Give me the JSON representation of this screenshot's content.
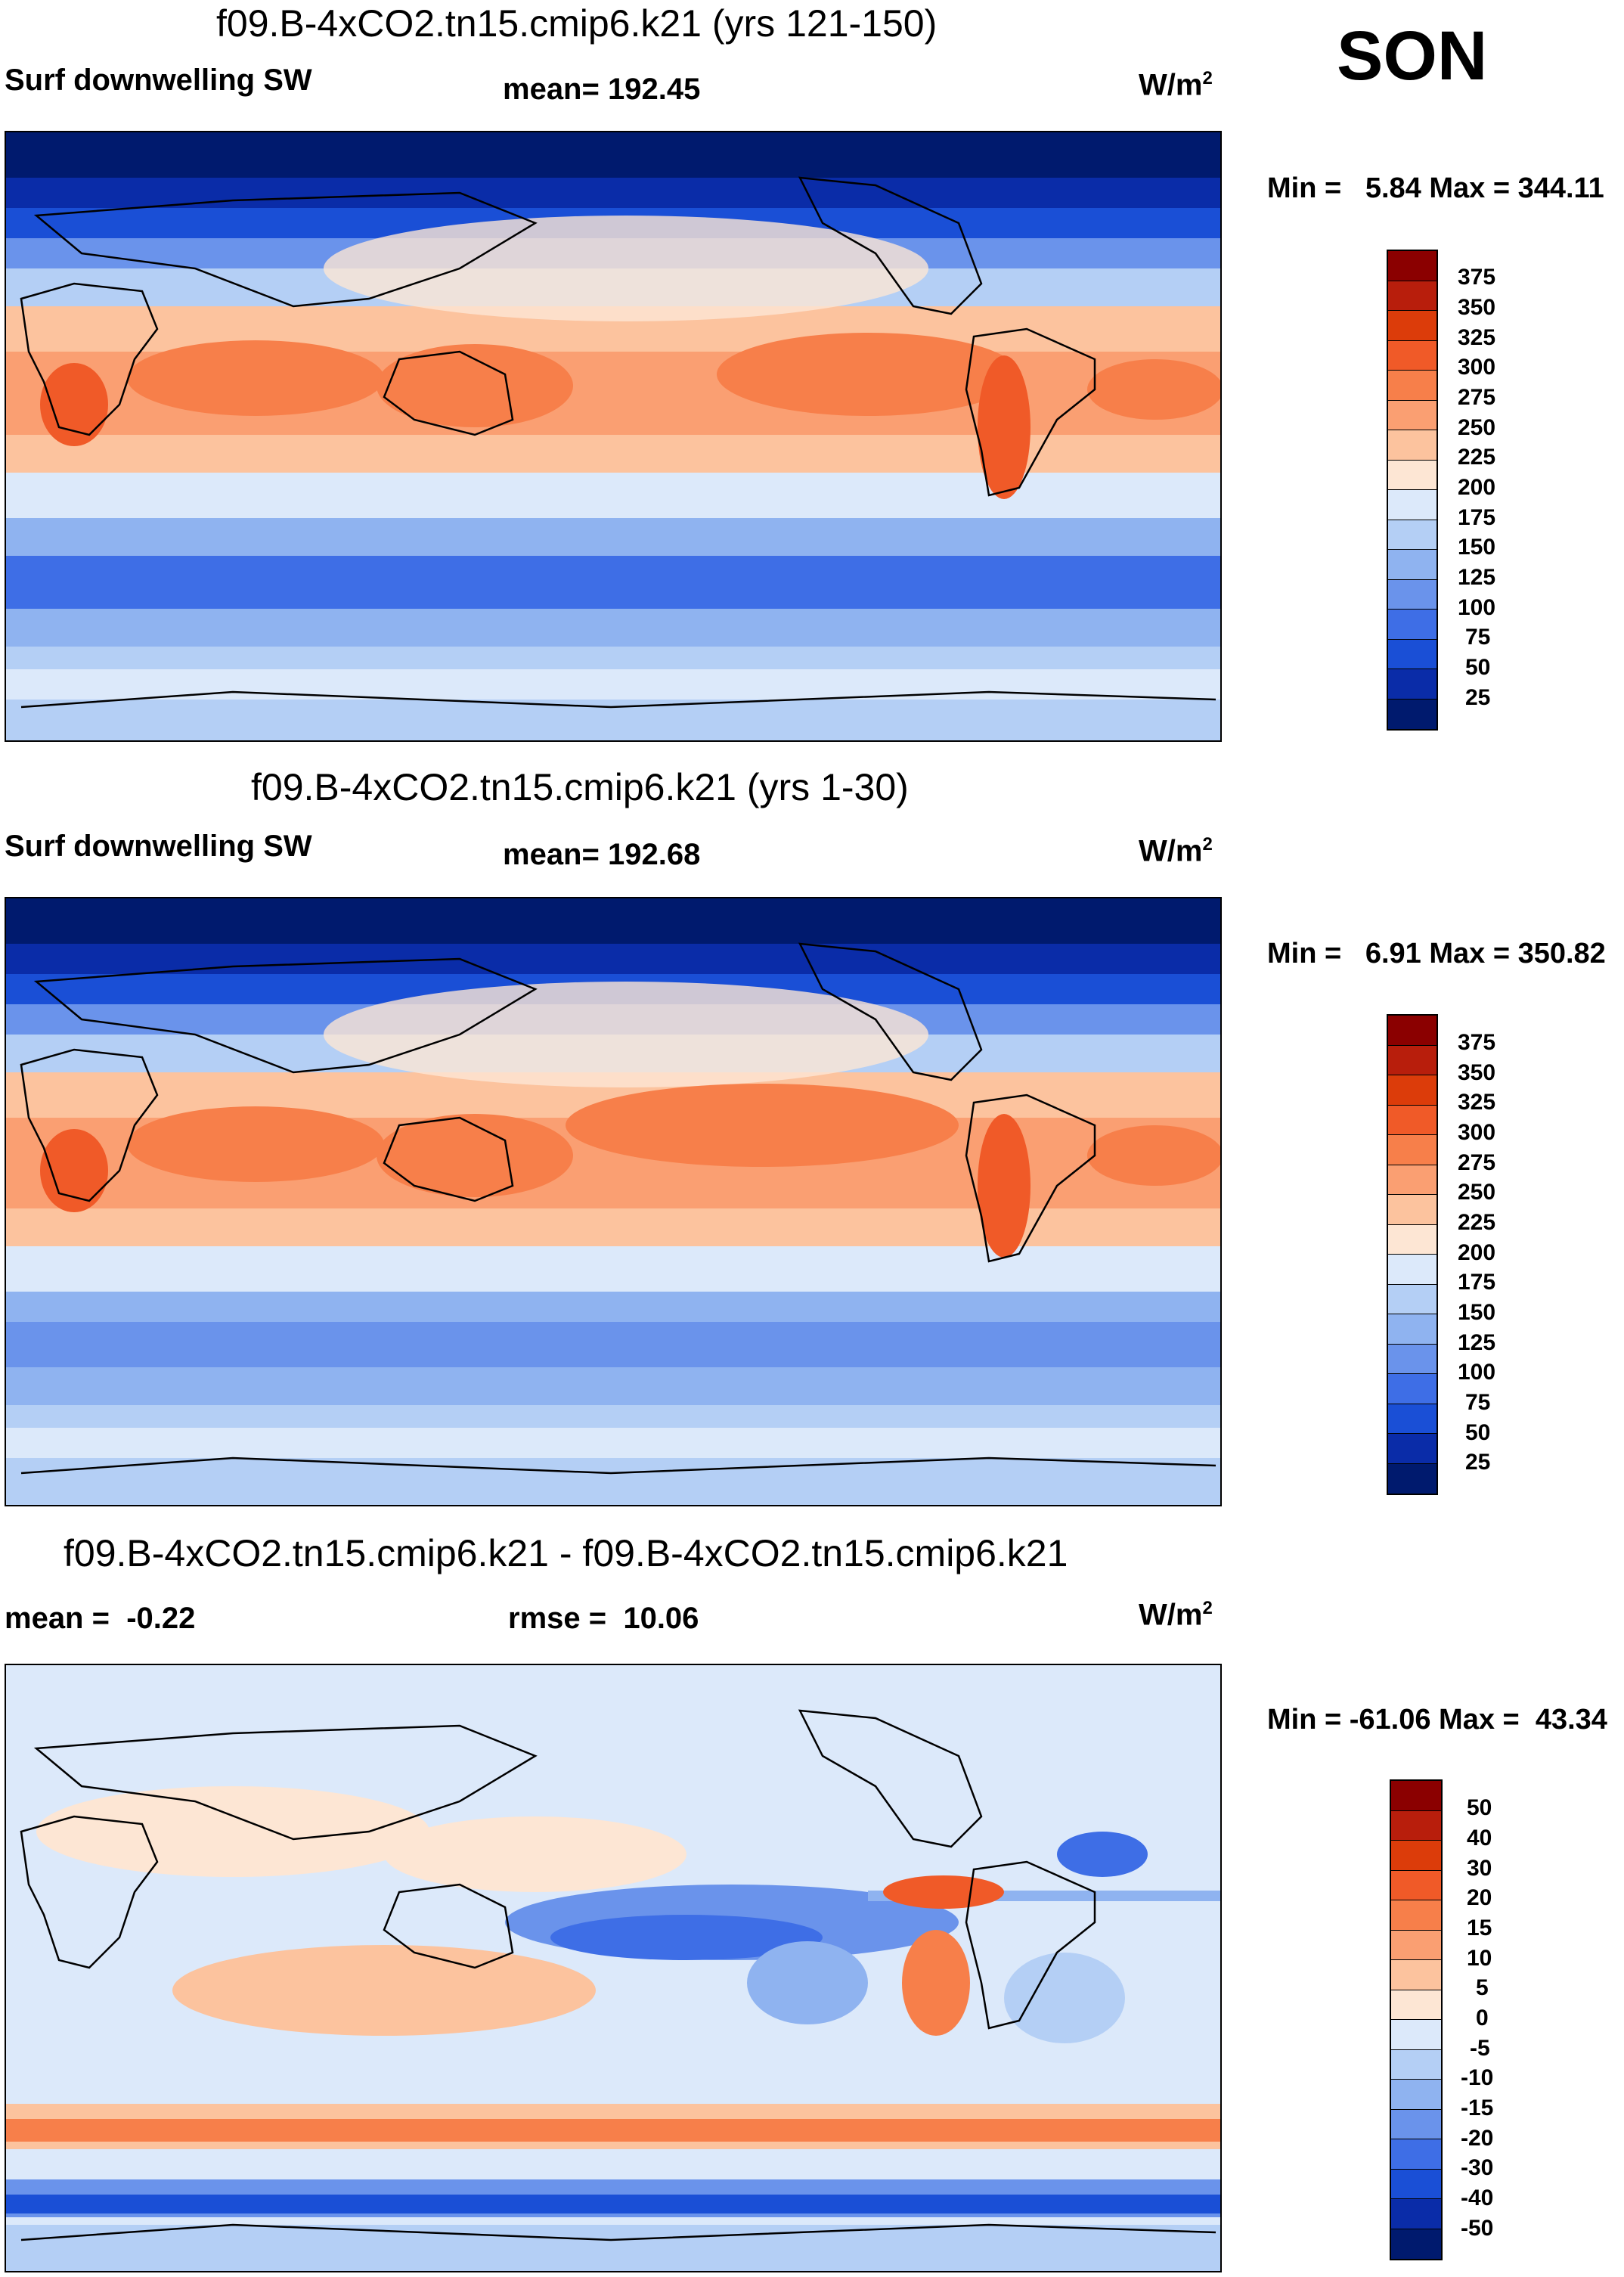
{
  "season": "SON",
  "panels": [
    {
      "title": "f09.B-4xCO2.tn15.cmip6.k21 (yrs 121-150)",
      "left_label": "Surf downwelling SW",
      "center_label": "mean= 192.45",
      "units_base": "W/m",
      "units_exp": "2",
      "minmax": "Min =   5.84 Max = 344.11",
      "colorbar": {
        "levels": [
          "375",
          "350",
          "325",
          "300",
          "275",
          "250",
          "225",
          "200",
          "175",
          "150",
          "125",
          "100",
          "75",
          "50",
          "25"
        ],
        "colors": [
          "#8b0000",
          "#b81e0c",
          "#dc3c0a",
          "#f05a28",
          "#f77f4a",
          "#fa9f72",
          "#fcc39e",
          "#fde6d4",
          "#dce9fa",
          "#b4cff5",
          "#8fb3f0",
          "#6a93eb",
          "#3e6ee6",
          "#1a4fd6",
          "#0a2ca8",
          "#001a6e"
        ]
      }
    },
    {
      "title": "f09.B-4xCO2.tn15.cmip6.k21 (yrs 1-30)",
      "left_label": "Surf downwelling SW",
      "center_label": "mean= 192.68",
      "units_base": "W/m",
      "units_exp": "2",
      "minmax": "Min =   6.91 Max = 350.82",
      "colorbar": {
        "levels": [
          "375",
          "350",
          "325",
          "300",
          "275",
          "250",
          "225",
          "200",
          "175",
          "150",
          "125",
          "100",
          "75",
          "50",
          "25"
        ],
        "colors": [
          "#8b0000",
          "#b81e0c",
          "#dc3c0a",
          "#f05a28",
          "#f77f4a",
          "#fa9f72",
          "#fcc39e",
          "#fde6d4",
          "#dce9fa",
          "#b4cff5",
          "#8fb3f0",
          "#6a93eb",
          "#3e6ee6",
          "#1a4fd6",
          "#0a2ca8",
          "#001a6e"
        ]
      }
    },
    {
      "title": "f09.B-4xCO2.tn15.cmip6.k21 - f09.B-4xCO2.tn15.cmip6.k21",
      "left_label": "mean =  -0.22",
      "center_label": "rmse =  10.06",
      "units_base": "W/m",
      "units_exp": "2",
      "minmax": "Min = -61.06 Max =  43.34",
      "colorbar": {
        "levels": [
          "50",
          "40",
          "30",
          "20",
          "15",
          "10",
          "5",
          "0",
          "-5",
          "-10",
          "-15",
          "-20",
          "-30",
          "-40",
          "-50"
        ],
        "colors": [
          "#8b0000",
          "#b81e0c",
          "#dc3c0a",
          "#f05a28",
          "#f77f4a",
          "#fa9f72",
          "#fcc39e",
          "#fde6d4",
          "#dce9fa",
          "#b4cff5",
          "#8fb3f0",
          "#6a93eb",
          "#3e6ee6",
          "#1a4fd6",
          "#0a2ca8",
          "#001a6e"
        ]
      }
    }
  ]
}
